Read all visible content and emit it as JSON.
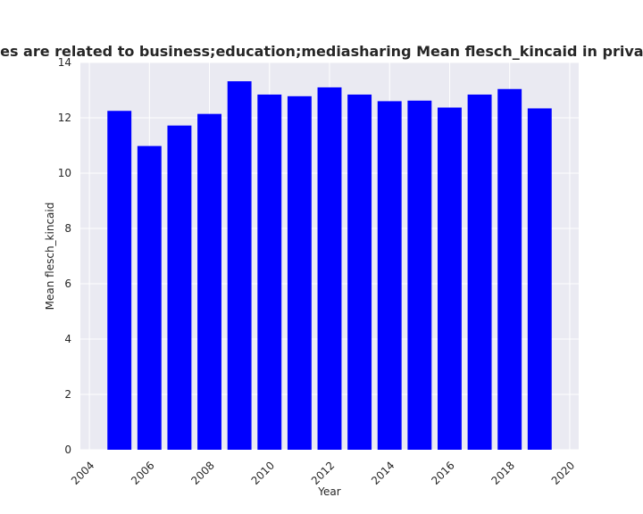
{
  "chart_data": {
    "type": "bar",
    "title": "Categories are related to business;education;mediasharing Mean flesch_kincaid in privacy policies",
    "xlabel": "Year",
    "ylabel": "Mean flesch_kincaid",
    "x": [
      2005,
      2006,
      2007,
      2008,
      2009,
      2010,
      2011,
      2012,
      2013,
      2014,
      2015,
      2016,
      2017,
      2018,
      2019
    ],
    "values": [
      12.25,
      10.98,
      11.72,
      12.14,
      13.32,
      12.84,
      12.78,
      13.1,
      12.84,
      12.6,
      12.62,
      12.37,
      12.84,
      13.04,
      12.34
    ],
    "xlim": [
      2003.7,
      2020.3
    ],
    "ylim": [
      0,
      14
    ],
    "xticks": [
      2004,
      2006,
      2008,
      2010,
      2012,
      2014,
      2016,
      2018,
      2020
    ],
    "yticks": [
      0,
      2,
      4,
      6,
      8,
      10,
      12,
      14
    ],
    "bar_color": "#0000ff",
    "plot_background": "#eaeaf2",
    "grid": true,
    "legend": false
  }
}
